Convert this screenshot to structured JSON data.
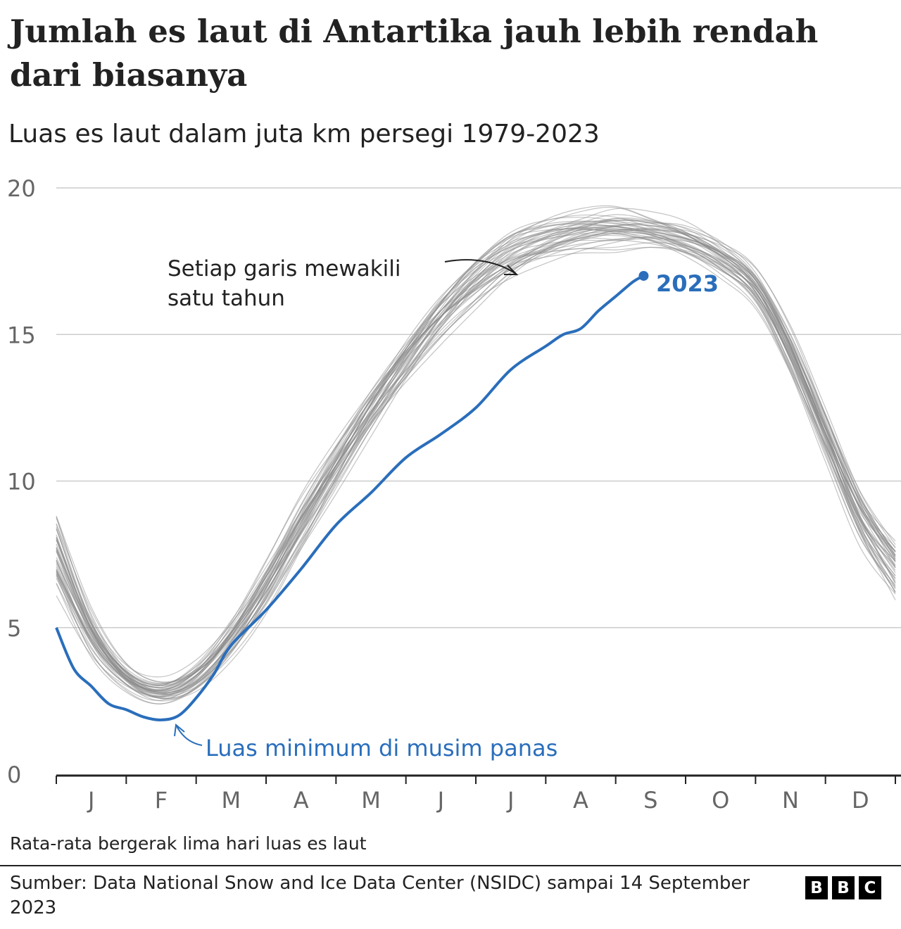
{
  "title": "Jumlah es laut di Antartika jauh lebih rendah dari biasanya",
  "subtitle": "Luas es laut dalam juta km persegi 1979-2023",
  "footnote": "Rata-rata bergerak lima hari luas es laut",
  "source": "Sumber: Data National Snow and Ice Data Center (NSIDC) sampai 14 September 2023",
  "logo": [
    "B",
    "B",
    "C"
  ],
  "colors": {
    "historical": "#8a8a8a",
    "highlight": "#2a6ebb",
    "grid": "#cccccc",
    "axis": "#222222",
    "tick_text": "#666666"
  },
  "annotations": {
    "lines_note": [
      "Setiap garis mewakili",
      "satu tahun"
    ],
    "min_note": "Luas minimum di musim panas",
    "year_label": "2023"
  },
  "chart_data": {
    "type": "line",
    "title": "Jumlah es laut di Antartika jauh lebih rendah dari biasanya",
    "subtitle": "Luas es laut dalam juta km persegi 1979-2023",
    "xlabel": "",
    "ylabel": "",
    "x_unit": "month",
    "x_ticks": [
      "J",
      "F",
      "M",
      "A",
      "M",
      "J",
      "J",
      "A",
      "S",
      "O",
      "N",
      "D"
    ],
    "xlim": [
      0,
      12
    ],
    "ylim": [
      0,
      20
    ],
    "y_ticks": [
      0,
      5,
      10,
      15,
      20
    ],
    "grid": true,
    "historical_range": {
      "description": "Each grey line represents one year, 1979-2022",
      "x": [
        0,
        0.5,
        1,
        1.5,
        2,
        2.5,
        3,
        3.5,
        4,
        4.5,
        5,
        5.5,
        6,
        6.5,
        7,
        7.5,
        8,
        8.5,
        9,
        9.5,
        10,
        10.5,
        11,
        11.5,
        12
      ],
      "mean": [
        7.5,
        4.8,
        3.3,
        2.8,
        3.3,
        4.6,
        6.4,
        8.5,
        10.5,
        12.4,
        14.1,
        15.6,
        16.8,
        17.7,
        18.2,
        18.5,
        18.6,
        18.5,
        18.2,
        17.6,
        16.6,
        14.4,
        11.6,
        8.8,
        7.0
      ],
      "low": [
        5.5,
        3.6,
        2.5,
        2.1,
        2.4,
        3.5,
        5.1,
        7.0,
        9.0,
        10.9,
        12.6,
        14.1,
        15.4,
        16.4,
        17.1,
        17.5,
        17.7,
        17.6,
        17.3,
        16.7,
        15.5,
        13.0,
        10.0,
        7.0,
        5.3
      ],
      "high": [
        9.7,
        6.1,
        4.0,
        3.6,
        4.2,
        5.7,
        7.8,
        10.0,
        12.0,
        13.9,
        15.6,
        17.0,
        18.2,
        19.0,
        19.4,
        19.7,
        20.1,
        19.6,
        19.3,
        18.7,
        17.6,
        15.6,
        13.0,
        10.7,
        9.6
      ]
    },
    "series": [
      {
        "name": "2023",
        "x": [
          0,
          0.25,
          0.5,
          0.75,
          1.0,
          1.25,
          1.5,
          1.75,
          2.0,
          2.25,
          2.5,
          3.0,
          3.5,
          4.0,
          4.5,
          5.0,
          5.5,
          6.0,
          6.5,
          7.0,
          7.25,
          7.5,
          7.75,
          8.0,
          8.25,
          8.4
        ],
        "y": [
          5.0,
          3.6,
          3.0,
          2.4,
          2.2,
          1.95,
          1.85,
          2.0,
          2.6,
          3.4,
          4.4,
          5.6,
          7.0,
          8.5,
          9.6,
          10.8,
          11.6,
          12.5,
          13.8,
          14.6,
          15.0,
          15.2,
          15.8,
          16.3,
          16.8,
          17.0
        ]
      }
    ]
  }
}
